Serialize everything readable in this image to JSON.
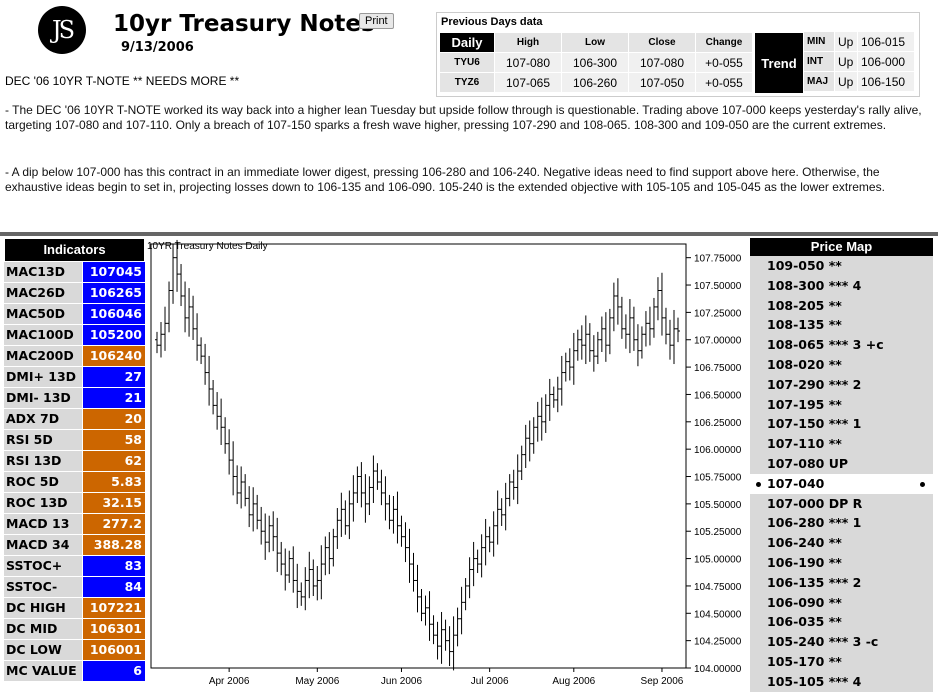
{
  "header": {
    "logo_text": "JS",
    "title": "10yr Treasury Notes",
    "print_label": "Print",
    "date": "9/13/2006",
    "headline": "DEC '06 10YR T-NOTE ** NEEDS MORE **",
    "paragraphs": [
      "- The DEC '06 10YR T-NOTE worked its way back into a higher lean Tuesday but upside follow through is questionable. Trading above 107-000 keeps yesterday's rally alive, targeting 107-080 and 107-110. Only a breach of 107-150 sparks a fresh wave higher, pressing 107-290 and 108-065. 108-300 and 109-050 are the current extremes.",
      "- A dip below 107-000 has this contract in an immediate lower digest, pressing 106-280 and 106-240. Negative ideas need to find support above here. Otherwise, the exhaustive ideas begin to set in, projecting losses down to 106-135 and 106-090. 105-240 is the extended objective with 105-105 and 105-045 as the lower extremes."
    ]
  },
  "previous_days": {
    "title": "Previous Days data",
    "daily_label": "Daily",
    "columns": [
      "High",
      "Low",
      "Close",
      "Change"
    ],
    "rows": [
      {
        "symbol": "TYU6",
        "high": "107-080",
        "low": "106-300",
        "close": "107-080",
        "change": "+0-055"
      },
      {
        "symbol": "TYZ6",
        "high": "107-065",
        "low": "106-260",
        "close": "107-050",
        "change": "+0-055"
      }
    ],
    "trend_label": "Trend",
    "trend_rows": [
      {
        "label": "MIN",
        "dir": "Up",
        "value": "106-015"
      },
      {
        "label": "INT",
        "dir": "Up",
        "value": "106-000"
      },
      {
        "label": "MAJ",
        "dir": "Up",
        "value": "106-150"
      }
    ]
  },
  "indicators": {
    "title": "Indicators",
    "colors": {
      "blue": "#0000ff",
      "orange": "#cc6600"
    },
    "rows": [
      {
        "name": "MAC13D",
        "value": "107045",
        "color": "blue"
      },
      {
        "name": "MAC26D",
        "value": "106265",
        "color": "blue"
      },
      {
        "name": "MAC50D",
        "value": "106046",
        "color": "blue"
      },
      {
        "name": "MAC100D",
        "value": "105200",
        "color": "blue"
      },
      {
        "name": "MAC200D",
        "value": "106240",
        "color": "orange"
      },
      {
        "name": "DMI+ 13D",
        "value": "27",
        "color": "blue"
      },
      {
        "name": "DMI- 13D",
        "value": "21",
        "color": "blue"
      },
      {
        "name": "ADX 7D",
        "value": "20",
        "color": "orange"
      },
      {
        "name": "RSI 5D",
        "value": "58",
        "color": "orange"
      },
      {
        "name": "RSI 13D",
        "value": "62",
        "color": "orange"
      },
      {
        "name": "ROC 5D",
        "value": "5.83",
        "color": "orange"
      },
      {
        "name": "ROC 13D",
        "value": "32.15",
        "color": "orange"
      },
      {
        "name": "MACD 13",
        "value": "277.2",
        "color": "orange"
      },
      {
        "name": "MACD 34",
        "value": "388.28",
        "color": "orange"
      },
      {
        "name": "SSTOC+",
        "value": "83",
        "color": "blue"
      },
      {
        "name": "SSTOC-",
        "value": "84",
        "color": "blue"
      },
      {
        "name": "DC HIGH",
        "value": "107221",
        "color": "orange"
      },
      {
        "name": "DC MID",
        "value": "106301",
        "color": "orange"
      },
      {
        "name": "DC LOW",
        "value": "106001",
        "color": "orange"
      },
      {
        "name": "MC VALUE",
        "value": "6",
        "color": "blue"
      }
    ]
  },
  "chart_data": {
    "type": "ohlc",
    "title": "10YR Treasury Notes Daily",
    "ylim": [
      104.0,
      107.875
    ],
    "y_ticks": [
      "107.75000",
      "107.50000",
      "107.25000",
      "107.00000",
      "106.75000",
      "106.50000",
      "106.25000",
      "106.00000",
      "105.75000",
      "105.50000",
      "105.25000",
      "105.00000",
      "104.75000",
      "104.50000",
      "104.25000",
      "104.00000"
    ],
    "x_ticks": [
      {
        "label": "Apr 2006",
        "index": 18
      },
      {
        "label": "May 2006",
        "index": 40
      },
      {
        "label": "Jun 2006",
        "index": 61
      },
      {
        "label": "Jul 2006",
        "index": 83
      },
      {
        "label": "Aug 2006",
        "index": 104
      },
      {
        "label": "Sep 2006",
        "index": 126
      }
    ],
    "bar_count": 131,
    "closes": [
      106.95,
      107.05,
      107.15,
      107.45,
      107.75,
      107.6,
      107.4,
      107.2,
      107.3,
      107.1,
      106.95,
      106.85,
      106.7,
      106.55,
      106.4,
      106.3,
      106.2,
      106.05,
      105.9,
      105.75,
      105.6,
      105.7,
      105.55,
      105.4,
      105.5,
      105.35,
      105.25,
      105.15,
      105.3,
      105.2,
      105.05,
      104.95,
      104.85,
      105.0,
      104.8,
      104.7,
      104.65,
      104.8,
      104.9,
      104.75,
      104.8,
      104.95,
      105.1,
      105.0,
      105.2,
      105.35,
      105.45,
      105.3,
      105.5,
      105.6,
      105.75,
      105.6,
      105.5,
      105.65,
      105.8,
      105.7,
      105.6,
      105.5,
      105.35,
      105.45,
      105.3,
      105.2,
      105.1,
      104.95,
      104.8,
      104.65,
      104.5,
      104.55,
      104.4,
      104.3,
      104.2,
      104.35,
      104.25,
      104.15,
      104.3,
      104.45,
      104.6,
      104.75,
      104.9,
      105.0,
      104.95,
      105.1,
      105.2,
      105.15,
      105.3,
      105.45,
      105.4,
      105.55,
      105.7,
      105.65,
      105.8,
      105.95,
      106.1,
      106.05,
      106.2,
      106.3,
      106.25,
      106.4,
      106.5,
      106.45,
      106.55,
      106.7,
      106.8,
      106.75,
      106.9,
      107.0,
      106.95,
      107.05,
      106.9,
      106.85,
      107.0,
      107.1,
      106.95,
      107.2,
      107.4,
      107.3,
      107.1,
      107.05,
      107.2,
      107.0,
      106.9,
      107.05,
      107.15,
      107.1,
      107.3,
      107.45,
      107.2,
      107.05,
      106.95,
      107.1,
      107.08
    ]
  },
  "price_map": {
    "title": "Price Map",
    "levels_above": [
      "109-050 **",
      "108-300 *** 4",
      "108-205 **",
      "108-135 **",
      "108-065 *** 3 +c",
      "108-020 **",
      "107-290 *** 2",
      "107-195 **",
      "107-150 *** 1",
      "107-110 **",
      "107-080 UP"
    ],
    "current": "107-040",
    "levels_below": [
      "107-000 DP R",
      "106-280 *** 1",
      "106-240 **",
      "106-190 **",
      "106-135 *** 2",
      "106-090 **",
      "106-035 **",
      "105-240 *** 3 -c",
      "105-170 **",
      "105-105 *** 4"
    ]
  }
}
